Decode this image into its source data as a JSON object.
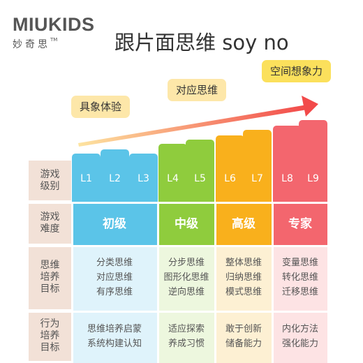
{
  "logo": {
    "main": "MIUKIDS",
    "sub": "妙奇思",
    "tm": "TM"
  },
  "title": "跟片面思维 soy no",
  "stage_labels": [
    "具象体验",
    "对应思维",
    "空间想象力"
  ],
  "colors": {
    "blue_dark": "#5bc4e8",
    "blue_light": "#dff3fb",
    "green_dark": "#8fcc3d",
    "green_light": "#edf7de",
    "orange_dark": "#f9b01c",
    "orange_light": "#fdf0d3",
    "red_dark": "#f3666e",
    "red_light": "#fde3e4",
    "label_bg": "#f2e1d7",
    "arrow_start": "#fde4a0",
    "arrow_end": "#f24a4a"
  },
  "levels": [
    "L1",
    "L2",
    "L3",
    "L4",
    "L5",
    "L6",
    "L7",
    "L8",
    "L9"
  ],
  "row_labels": {
    "level": "游戏\n级别",
    "difficulty": "游戏\n难度",
    "thinking": "思维\n培养\n目标",
    "behavior": "行为\n培养\n目标"
  },
  "groups": [
    {
      "difficulty": "初级",
      "thinking": [
        "分类思维",
        "对应思维",
        "有序思维"
      ],
      "behavior": [
        "思维培养启蒙",
        "系统构建认知"
      ]
    },
    {
      "difficulty": "中级",
      "thinking": [
        "分步思维",
        "图形化思维",
        "逆向思维"
      ],
      "behavior": [
        "适应探索",
        "养成习惯"
      ]
    },
    {
      "difficulty": "高级",
      "thinking": [
        "整体思维",
        "归纳思维",
        "模式思维"
      ],
      "behavior": [
        "敢于创新",
        "储备能力"
      ]
    },
    {
      "difficulty": "专家",
      "thinking": [
        "变量思维",
        "转化思维",
        "迁移思维"
      ],
      "behavior": [
        "内化方法",
        "强化能力"
      ]
    }
  ]
}
